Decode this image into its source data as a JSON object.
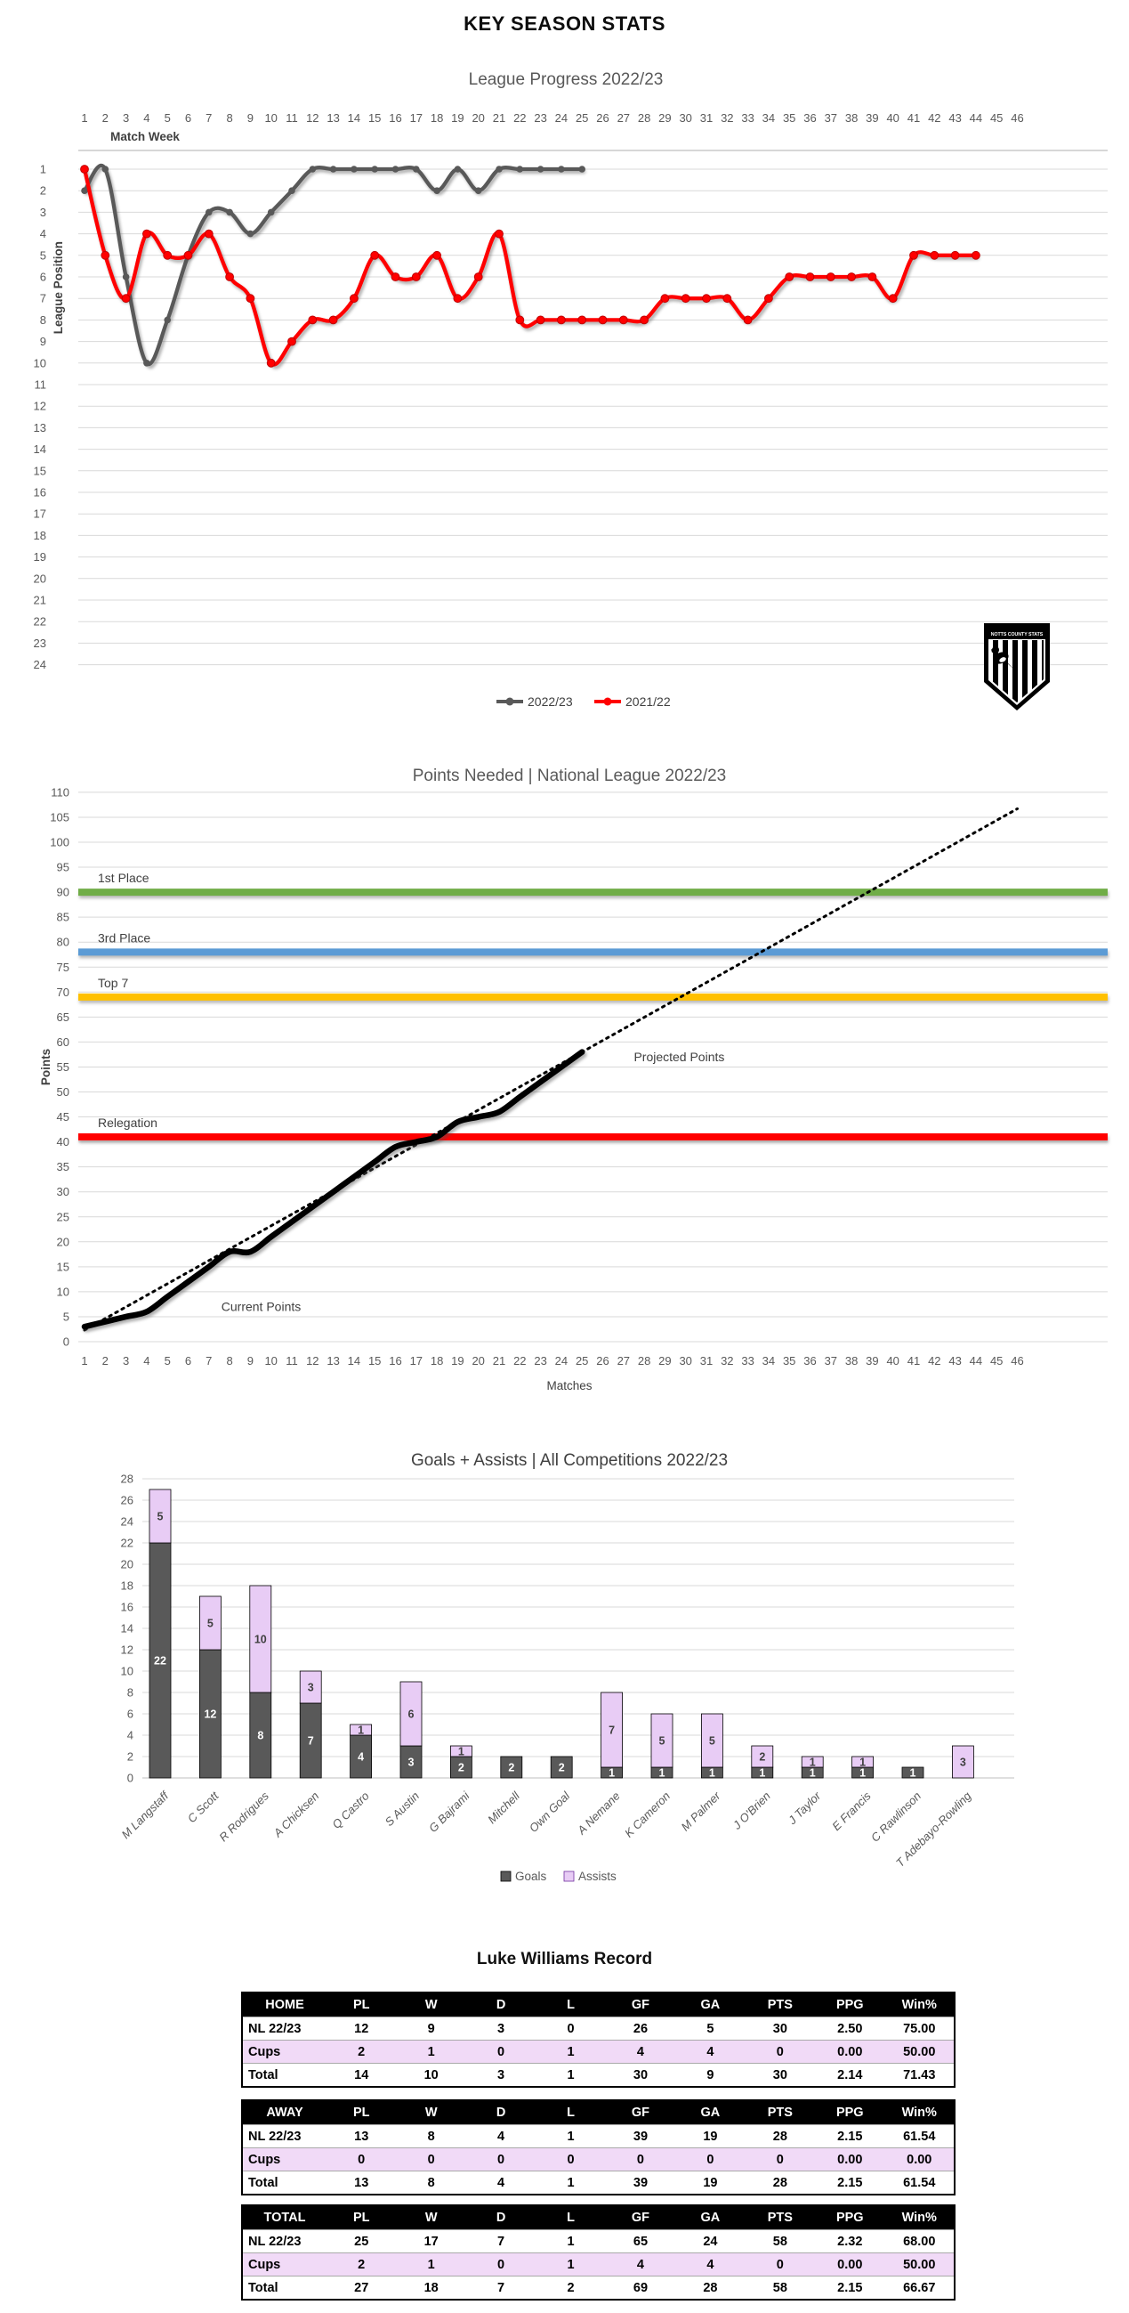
{
  "page": {
    "title": "KEY SEASON STATS"
  },
  "badge": {
    "text": "NOTTS COUNTY STATS"
  },
  "chart_data": [
    {
      "type": "line",
      "title": "League Progress 2022/23",
      "xlabel": "Match Week",
      "ylabel": "League Position",
      "x_ticks": [
        1,
        2,
        3,
        4,
        5,
        6,
        7,
        8,
        9,
        10,
        11,
        12,
        13,
        14,
        15,
        16,
        17,
        18,
        19,
        20,
        21,
        22,
        23,
        24,
        25,
        26,
        27,
        28,
        29,
        30,
        31,
        32,
        33,
        34,
        35,
        36,
        37,
        38,
        39,
        40,
        41,
        42,
        43,
        44,
        45,
        46
      ],
      "y_ticks": [
        1,
        2,
        3,
        4,
        5,
        6,
        7,
        8,
        9,
        10,
        11,
        12,
        13,
        14,
        15,
        16,
        17,
        18,
        19,
        20,
        21,
        22,
        23,
        24
      ],
      "y_inverted": true,
      "grid": true,
      "legend_position": "bottom",
      "series": [
        {
          "name": "2022/23",
          "color": "#595959",
          "values": [
            2,
            1,
            6,
            10,
            8,
            5,
            3,
            3,
            4,
            3,
            2,
            1,
            1,
            1,
            1,
            1,
            1,
            2,
            1,
            2,
            1,
            1,
            1,
            1,
            1
          ]
        },
        {
          "name": "2021/22",
          "color": "#FF0000",
          "values": [
            1,
            5,
            7,
            4,
            5,
            5,
            4,
            6,
            7,
            10,
            9,
            8,
            8,
            7,
            5,
            6,
            6,
            5,
            7,
            6,
            4,
            8,
            8,
            8,
            8,
            8,
            8,
            8,
            7,
            7,
            7,
            7,
            8,
            7,
            6,
            6,
            6,
            6,
            6,
            7,
            5,
            5,
            5,
            5
          ]
        }
      ]
    },
    {
      "type": "line",
      "title": "Points Needed | National League 2022/23",
      "xlabel": "Matches",
      "ylabel": "Points",
      "ylim": [
        0,
        110
      ],
      "y_ticks": [
        0,
        5,
        10,
        15,
        20,
        25,
        30,
        35,
        40,
        45,
        50,
        55,
        60,
        65,
        70,
        75,
        80,
        85,
        90,
        95,
        100,
        105,
        110
      ],
      "x_ticks": [
        1,
        2,
        3,
        4,
        5,
        6,
        7,
        8,
        9,
        10,
        11,
        12,
        13,
        14,
        15,
        16,
        17,
        18,
        19,
        20,
        21,
        22,
        23,
        24,
        25,
        26,
        27,
        28,
        29,
        30,
        31,
        32,
        33,
        34,
        35,
        36,
        37,
        38,
        39,
        40,
        41,
        42,
        43,
        44,
        45,
        46
      ],
      "grid": true,
      "thresholds": [
        {
          "label": "1st Place",
          "value": 90,
          "color": "#70AD47"
        },
        {
          "label": "3rd Place",
          "value": 78,
          "color": "#5B9BD5"
        },
        {
          "label": "Top 7",
          "value": 69,
          "color": "#FFC000"
        },
        {
          "label": "Relegation",
          "value": 41,
          "color": "#FF0000"
        }
      ],
      "current_points": {
        "name": "Current Points",
        "color": "#000000",
        "values": [
          3,
          4,
          5,
          6,
          9,
          12,
          15,
          18,
          18,
          21,
          24,
          27,
          30,
          33,
          36,
          39,
          40,
          41,
          44,
          45,
          46,
          49,
          52,
          55,
          58
        ]
      },
      "projected": {
        "name": "Projected Points",
        "per_game": 2.32,
        "start_match": 1,
        "end_match": 46,
        "end_value": 106.7,
        "style": "dotted",
        "color": "#000000"
      },
      "annotations": [
        {
          "label": "Current Points",
          "x": 7.6,
          "y": 7
        },
        {
          "label": "Projected Points",
          "x": 27.5,
          "y": 57
        }
      ]
    },
    {
      "type": "bar",
      "stacked": true,
      "title": "Goals + Assists | All Competitions 2022/23",
      "ylim": [
        0,
        28
      ],
      "y_ticks": [
        0,
        2,
        4,
        6,
        8,
        10,
        12,
        14,
        16,
        18,
        20,
        22,
        24,
        26,
        28
      ],
      "categories": [
        "M Langstaff",
        "C Scott",
        "R Rodrigues",
        "A Chicksen",
        "Q Castro",
        "S Austin",
        "G Bajrami",
        "Mitchell",
        "Own Goal",
        "A Nemane",
        "K Cameron",
        "M Palmer",
        "J O'Brien",
        "J Taylor",
        "E Francis",
        "C Rawlinson",
        "T Adebayo-Rowling"
      ],
      "series": [
        {
          "name": "Goals",
          "color": "#595959",
          "values": [
            22,
            12,
            8,
            7,
            4,
            3,
            2,
            2,
            2,
            1,
            1,
            1,
            1,
            1,
            1,
            1,
            0
          ]
        },
        {
          "name": "Assists",
          "color": "#E8CCF5",
          "values": [
            5,
            5,
            10,
            3,
            1,
            6,
            1,
            0,
            0,
            7,
            5,
            5,
            2,
            1,
            1,
            0,
            3
          ]
        }
      ]
    }
  ],
  "tables": {
    "title": "Luke Williams Record",
    "columns": [
      "PL",
      "W",
      "D",
      "L",
      "GF",
      "GA",
      "PTS",
      "PPG",
      "Win%"
    ],
    "cups_row_color": "#F1DAF7",
    "sections": [
      {
        "name": "HOME",
        "rows": [
          {
            "label": "NL 22/23",
            "values": [
              "12",
              "9",
              "3",
              "0",
              "26",
              "5",
              "30",
              "2.50",
              "75.00"
            ],
            "highlight": false
          },
          {
            "label": "Cups",
            "values": [
              "2",
              "1",
              "0",
              "1",
              "4",
              "4",
              "0",
              "0.00",
              "50.00"
            ],
            "highlight": true
          },
          {
            "label": "Total",
            "values": [
              "14",
              "10",
              "3",
              "1",
              "30",
              "9",
              "30",
              "2.14",
              "71.43"
            ],
            "highlight": false
          }
        ]
      },
      {
        "name": "AWAY",
        "rows": [
          {
            "label": "NL 22/23",
            "values": [
              "13",
              "8",
              "4",
              "1",
              "39",
              "19",
              "28",
              "2.15",
              "61.54"
            ],
            "highlight": false
          },
          {
            "label": "Cups",
            "values": [
              "0",
              "0",
              "0",
              "0",
              "0",
              "0",
              "0",
              "0.00",
              "0.00"
            ],
            "highlight": true
          },
          {
            "label": "Total",
            "values": [
              "13",
              "8",
              "4",
              "1",
              "39",
              "19",
              "28",
              "2.15",
              "61.54"
            ],
            "highlight": false
          }
        ]
      },
      {
        "name": "TOTAL",
        "rows": [
          {
            "label": "NL 22/23",
            "values": [
              "25",
              "17",
              "7",
              "1",
              "65",
              "24",
              "58",
              "2.32",
              "68.00"
            ],
            "highlight": false
          },
          {
            "label": "Cups",
            "values": [
              "2",
              "1",
              "0",
              "1",
              "4",
              "4",
              "0",
              "0.00",
              "50.00"
            ],
            "highlight": true
          },
          {
            "label": "Total",
            "values": [
              "27",
              "18",
              "7",
              "2",
              "69",
              "28",
              "58",
              "2.15",
              "66.67"
            ],
            "highlight": false
          }
        ]
      }
    ]
  }
}
